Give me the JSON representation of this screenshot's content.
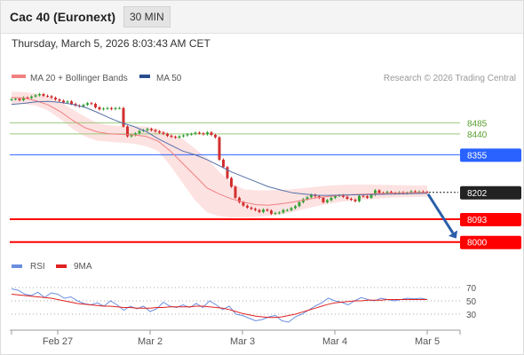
{
  "header": {
    "title": "Cac 40 (Euronext)",
    "timeframe": "30 MIN",
    "datetime": "Thursday, March 5, 2026 8:03:43 AM CET"
  },
  "credit": "Research © 2026 Trading Central",
  "colors": {
    "up": "#3aa33a",
    "down": "#d23030",
    "blue_level": "#2962ff",
    "red_level": "#ff0000",
    "green_level": "#9bc97a",
    "ma20": "#f08080",
    "ma50": "#5570a8",
    "band_fill": "#fde2e2",
    "current": "#222222",
    "arrow": "#2a5ea8",
    "rsi_line": "#6a8ee0",
    "rsi_ma": "#e02020"
  },
  "chart_data": [
    {
      "type": "candlestick",
      "legend": [
        {
          "label": "MA 20 + Bollinger Bands",
          "color": "#f08080"
        },
        {
          "label": "MA 50",
          "color": "#2a4d8f"
        }
      ],
      "x_tick_labels": [
        "Feb 27",
        "Mar 2",
        "Mar 3",
        "Mar 4",
        "Mar 5"
      ],
      "y_range": [
        7970,
        8620
      ],
      "levels": [
        {
          "value": 8485,
          "label": "8485",
          "style": "green-line"
        },
        {
          "value": 8440,
          "label": "8440",
          "style": "green-line"
        },
        {
          "value": 8355,
          "label": "8355",
          "style": "blue-tag"
        },
        {
          "value": 8202,
          "label": "8202",
          "style": "current-price-tag"
        },
        {
          "value": 8093,
          "label": "8093",
          "style": "red-tag"
        },
        {
          "value": 8000,
          "label": "8000",
          "style": "red-tag"
        }
      ],
      "forecast_arrow": {
        "from": 8202,
        "to": 8000
      },
      "series": [
        {
          "name": "Price",
          "close": [
            8581,
            8583,
            8577,
            8588,
            8586,
            8592,
            8597,
            8602,
            8595,
            8593,
            8587,
            8580,
            8575,
            8568,
            8572,
            8562,
            8555,
            8552,
            8558,
            8565,
            8562,
            8548,
            8540,
            8543,
            8545,
            8541,
            8545,
            8545,
            8470,
            8430,
            8435,
            8442,
            8452,
            8455,
            8460,
            8455,
            8450,
            8445,
            8440,
            8432,
            8428,
            8425,
            8430,
            8434,
            8438,
            8440,
            8445,
            8442,
            8438,
            8446,
            8436,
            8426,
            8335,
            8305,
            8260,
            8225,
            8180,
            8162,
            8148,
            8140,
            8135,
            8130,
            8122,
            8132,
            8128,
            8115,
            8118,
            8120,
            8130,
            8130,
            8138,
            8146,
            8162,
            8174,
            8182,
            8192,
            8186,
            8180,
            8162,
            8170,
            8180,
            8188,
            8190,
            8184,
            8176,
            8172,
            8166,
            8188,
            8186,
            8180,
            8192,
            8210,
            8200,
            8198,
            8204,
            8200,
            8198,
            8202,
            8198,
            8200,
            8206,
            8202,
            8205,
            8204,
            8202
          ]
        },
        {
          "name": "MA 20",
          "values": [
            8588,
            8586,
            8575,
            8558,
            8530,
            8495,
            8465,
            8448,
            8440,
            8438,
            8436,
            8430,
            8410,
            8370,
            8320,
            8270,
            8220,
            8195,
            8175,
            8162,
            8152,
            8150,
            8155,
            8162,
            8172,
            8180,
            8186,
            8190,
            8193,
            8195,
            8197,
            8199,
            8200,
            8201,
            8202
          ]
        },
        {
          "name": "MA 50",
          "values": [
            8560,
            8564,
            8570,
            8572,
            8568,
            8560,
            8548,
            8528,
            8505,
            8485,
            8470,
            8450,
            8420,
            8395,
            8370,
            8355,
            8335,
            8310,
            8285,
            8265,
            8245,
            8225,
            8212,
            8200,
            8195,
            8190,
            8190,
            8191,
            8192,
            8193,
            8194,
            8195,
            8196,
            8197,
            8198
          ]
        },
        {
          "name": "Bollinger Upper",
          "values": [
            8612,
            8610,
            8605,
            8590,
            8570,
            8540,
            8510,
            8485,
            8475,
            8472,
            8470,
            8470,
            8460,
            8440,
            8420,
            8380,
            8340,
            8285,
            8240,
            8215,
            8210,
            8210,
            8212,
            8215,
            8220,
            8225,
            8230,
            8232,
            8234,
            8234,
            8233,
            8232,
            8231,
            8230,
            8230
          ]
        },
        {
          "name": "Bollinger Lower",
          "values": [
            8562,
            8562,
            8555,
            8535,
            8500,
            8460,
            8430,
            8412,
            8408,
            8404,
            8400,
            8390,
            8370,
            8310,
            8240,
            8170,
            8120,
            8105,
            8100,
            8100,
            8102,
            8106,
            8112,
            8122,
            8135,
            8146,
            8156,
            8164,
            8170,
            8174,
            8177,
            8180,
            8182,
            8183,
            8184
          ]
        }
      ]
    },
    {
      "type": "line",
      "legend": [
        {
          "label": "RSI",
          "color": "#6a8ee0"
        },
        {
          "label": "9MA",
          "color": "#e02020"
        }
      ],
      "y_range": [
        10,
        90
      ],
      "y_tick_labels": [
        "70",
        "50",
        "30"
      ],
      "reference_lines": [
        70,
        50,
        30
      ],
      "series": [
        {
          "name": "RSI",
          "values": [
            68,
            66,
            60,
            58,
            63,
            55,
            62,
            60,
            54,
            56,
            50,
            46,
            44,
            47,
            42,
            50,
            44,
            36,
            42,
            38,
            42,
            34,
            38,
            48,
            42,
            40,
            44,
            40,
            46,
            40,
            50,
            44,
            37,
            42,
            30,
            28,
            24,
            20,
            22,
            26,
            28,
            20,
            18,
            26,
            30,
            36,
            42,
            47,
            54,
            50,
            48,
            44,
            50,
            55,
            52,
            50,
            54,
            52,
            50,
            52,
            54,
            53,
            54,
            52
          ]
        },
        {
          "name": "9MA",
          "values": [
            60,
            59,
            58,
            57,
            56,
            55,
            54,
            52,
            50,
            48,
            46,
            45,
            44,
            43,
            42,
            42,
            41,
            40,
            40,
            39,
            39,
            39,
            40,
            40,
            41,
            41,
            41,
            41,
            42,
            42,
            41,
            40,
            39,
            37,
            34,
            31,
            29,
            27,
            26,
            25,
            25,
            26,
            28,
            30,
            33,
            36,
            39,
            42,
            45,
            47,
            48,
            49,
            50,
            50,
            51,
            51,
            51,
            52,
            52,
            52,
            52,
            52,
            52,
            52
          ]
        }
      ]
    }
  ]
}
